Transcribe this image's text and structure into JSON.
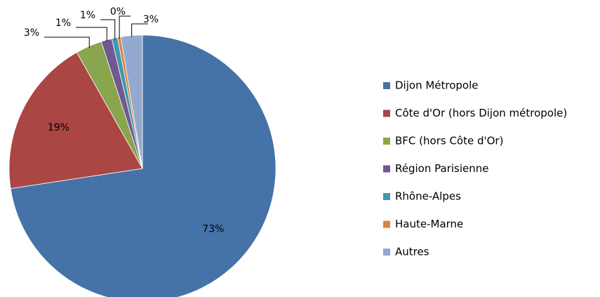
{
  "chart_data": {
    "type": "pie",
    "categories": [
      "Dijon Métropole",
      "Côte d'Or (hors Dijon métropole)",
      "BFC (hors Côte d'Or)",
      "Région Parisienne",
      "Rhône-Alpes",
      "Haute-Marne",
      "Autres"
    ],
    "values": [
      72.6,
      19.2,
      3.2,
      1.3,
      0.7,
      0.4,
      2.6
    ],
    "value_labels": [
      "73%",
      "19%",
      "3%",
      "1%",
      "1%",
      "0%",
      "3%"
    ],
    "colors": [
      "#4572a7",
      "#aa4643",
      "#89a54e",
      "#71588f",
      "#4198af",
      "#db843d",
      "#93a9cf"
    ],
    "legend": "right"
  }
}
